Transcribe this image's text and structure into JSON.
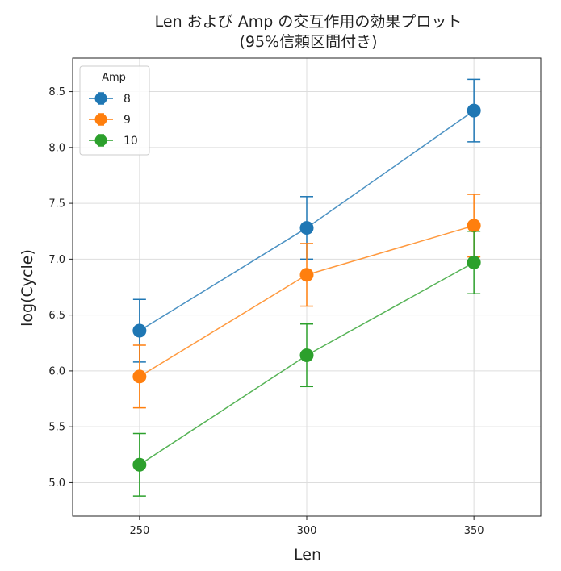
{
  "chart_data": {
    "type": "line",
    "title_line1": "Len および Amp の交互作用の効果プロット",
    "title_line2": "(95%信頼区間付き)",
    "xlabel": "Len",
    "ylabel": "log(Cycle)",
    "x": [
      250,
      300,
      350
    ],
    "x_tick_labels": [
      "250",
      "300",
      "350"
    ],
    "xlim": [
      230,
      370
    ],
    "ylim": [
      4.7,
      8.8
    ],
    "y_ticks": [
      5.0,
      5.5,
      6.0,
      6.5,
      7.0,
      7.5,
      8.0,
      8.5
    ],
    "y_tick_labels": [
      "5.0",
      "5.5",
      "6.0",
      "6.5",
      "7.0",
      "7.5",
      "8.0",
      "8.5"
    ],
    "grid": true,
    "legend": {
      "title": "Amp",
      "placement": "top-left"
    },
    "series": [
      {
        "name": "8",
        "color": "#1f77b4",
        "values": [
          6.36,
          7.28,
          8.33
        ],
        "lower": [
          6.08,
          7.0,
          8.05
        ],
        "upper": [
          6.64,
          7.56,
          8.61
        ]
      },
      {
        "name": "9",
        "color": "#ff7f0e",
        "values": [
          5.95,
          6.86,
          7.3
        ],
        "lower": [
          5.67,
          6.58,
          7.02
        ],
        "upper": [
          6.23,
          7.14,
          7.58
        ]
      },
      {
        "name": "10",
        "color": "#2ca02c",
        "values": [
          5.16,
          6.14,
          6.97
        ],
        "lower": [
          4.88,
          5.86,
          6.69
        ],
        "upper": [
          5.44,
          6.42,
          7.25
        ]
      }
    ]
  }
}
